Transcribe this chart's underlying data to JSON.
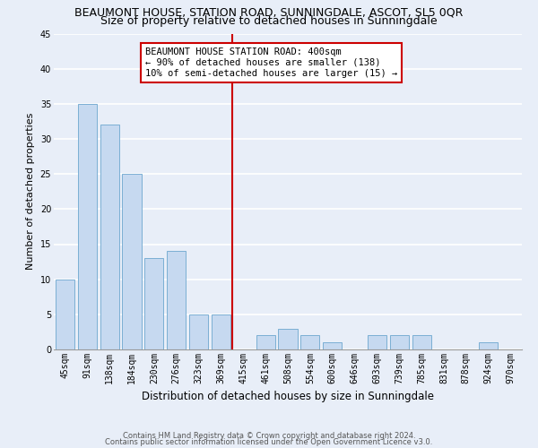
{
  "title": "BEAUMONT HOUSE, STATION ROAD, SUNNINGDALE, ASCOT, SL5 0QR",
  "subtitle": "Size of property relative to detached houses in Sunningdale",
  "xlabel": "Distribution of detached houses by size in Sunningdale",
  "ylabel": "Number of detached properties",
  "bar_labels": [
    "45sqm",
    "91sqm",
    "138sqm",
    "184sqm",
    "230sqm",
    "276sqm",
    "323sqm",
    "369sqm",
    "415sqm",
    "461sqm",
    "508sqm",
    "554sqm",
    "600sqm",
    "646sqm",
    "693sqm",
    "739sqm",
    "785sqm",
    "831sqm",
    "878sqm",
    "924sqm",
    "970sqm"
  ],
  "bar_values": [
    10,
    35,
    32,
    25,
    13,
    14,
    5,
    5,
    0,
    2,
    3,
    2,
    1,
    0,
    2,
    2,
    2,
    0,
    0,
    1,
    0
  ],
  "bar_color": "#c6d9f0",
  "bar_edge_color": "#7bafd4",
  "vline_index": 8,
  "vline_color": "#cc0000",
  "ylim": [
    0,
    45
  ],
  "yticks": [
    0,
    5,
    10,
    15,
    20,
    25,
    30,
    35,
    40,
    45
  ],
  "annotation_title": "BEAUMONT HOUSE STATION ROAD: 400sqm",
  "annotation_line1": "← 90% of detached houses are smaller (138)",
  "annotation_line2": "10% of semi-detached houses are larger (15) →",
  "annotation_box_color": "#ffffff",
  "annotation_box_edge": "#cc0000",
  "footer_line1": "Contains HM Land Registry data © Crown copyright and database right 2024.",
  "footer_line2": "Contains public sector information licensed under the Open Government Licence v3.0.",
  "background_color": "#e8eef8",
  "grid_color": "#ffffff",
  "title_fontsize": 9,
  "subtitle_fontsize": 9,
  "ylabel_fontsize": 8,
  "xlabel_fontsize": 8.5,
  "tick_fontsize": 7,
  "ann_fontsize": 7.5,
  "footer_fontsize": 6
}
